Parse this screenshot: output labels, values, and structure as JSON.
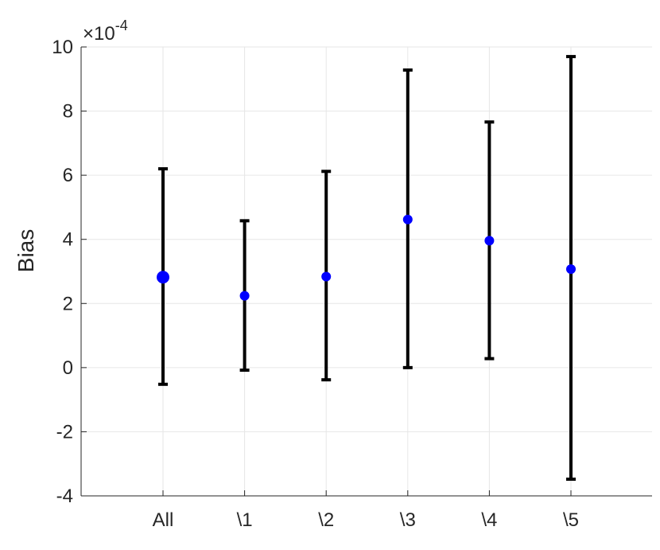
{
  "chart_data": {
    "type": "scatter",
    "subtype": "errorbar",
    "title": "",
    "xlabel": "",
    "ylabel": "Bias",
    "y_exponent_label": "×10",
    "y_exponent_power": "-4",
    "categories": [
      "All",
      "\\1",
      "\\2",
      "\\3",
      "\\4",
      "\\5"
    ],
    "ylim": [
      -4,
      10
    ],
    "yticks": [
      "-4",
      "-2",
      "0",
      "2",
      "4",
      "6",
      "8",
      "10"
    ],
    "ytick_values": [
      -4,
      -2,
      0,
      2,
      4,
      6,
      8,
      10
    ],
    "values": [
      2.82,
      2.24,
      2.84,
      4.62,
      3.96,
      3.07
    ],
    "lower": [
      -0.52,
      -0.08,
      -0.38,
      0.0,
      0.28,
      -3.48
    ],
    "upper": [
      6.2,
      4.58,
      6.12,
      9.28,
      7.66,
      9.7
    ],
    "grid": true,
    "colors": {
      "marker": "#0000ff",
      "errorbar": "#000000",
      "grid": "#e6e6e6",
      "axis": "#262626"
    }
  }
}
